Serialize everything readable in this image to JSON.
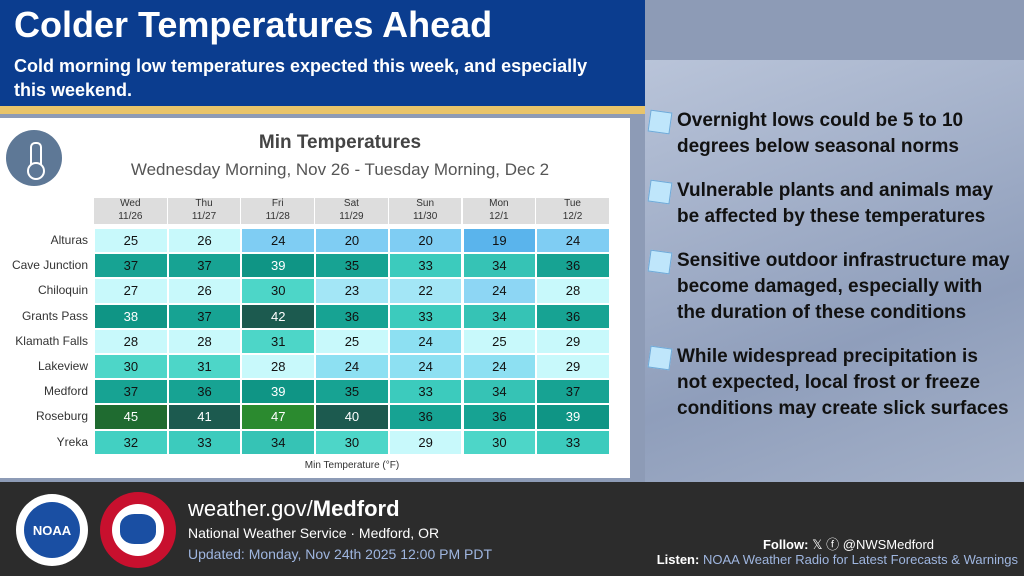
{
  "header": {
    "title": "Colder Temperatures Ahead",
    "subtitle": "Cold morning low temperatures expected this week, and especially this weekend."
  },
  "table": {
    "title": "Min Temperatures",
    "subtitle": "Wednesday Morning, Nov 26 - Tuesday Morning, Dec 2",
    "columns": [
      {
        "day": "Wed",
        "date": "11/26"
      },
      {
        "day": "Thu",
        "date": "11/27"
      },
      {
        "day": "Fri",
        "date": "11/28"
      },
      {
        "day": "Sat",
        "date": "11/29"
      },
      {
        "day": "Sun",
        "date": "11/30"
      },
      {
        "day": "Mon",
        "date": "12/1"
      },
      {
        "day": "Tue",
        "date": "12/2"
      }
    ],
    "rows": [
      {
        "label": "Alturas",
        "values": [
          25,
          26,
          24,
          20,
          20,
          19,
          24
        ],
        "colors": [
          "#c8f9fb",
          "#c8f9fb",
          "#7fcdf3",
          "#7fcdf3",
          "#7fcdf3",
          "#5ab4ec",
          "#7fcdf3"
        ]
      },
      {
        "label": "Cave Junction",
        "values": [
          37,
          37,
          39,
          35,
          33,
          34,
          36
        ],
        "colors": [
          "#17a393",
          "#17a393",
          "#0f9585",
          "#17a393",
          "#3ccbbd",
          "#36c3b5",
          "#17a393"
        ]
      },
      {
        "label": "Chiloquin",
        "values": [
          27,
          26,
          30,
          23,
          22,
          24,
          28
        ],
        "colors": [
          "#c8f9fb",
          "#c8f9fb",
          "#4dd6c8",
          "#a3e6f6",
          "#a3e6f6",
          "#8dd6f4",
          "#c8f9fb"
        ]
      },
      {
        "label": "Grants Pass",
        "values": [
          38,
          37,
          42,
          36,
          33,
          34,
          36
        ],
        "colors": [
          "#0f9585",
          "#17a393",
          "#1c5a4f",
          "#17a393",
          "#3ccbbd",
          "#36c3b5",
          "#17a393"
        ]
      },
      {
        "label": "Klamath Falls",
        "values": [
          28,
          28,
          31,
          25,
          24,
          25,
          29
        ],
        "colors": [
          "#c8f9fb",
          "#c8f9fb",
          "#4dd6c8",
          "#c8f9fb",
          "#8de0f2",
          "#c8f9fb",
          "#c8f9fb"
        ]
      },
      {
        "label": "Lakeview",
        "values": [
          30,
          31,
          28,
          24,
          24,
          24,
          29
        ],
        "colors": [
          "#4dd6c8",
          "#4dd6c8",
          "#c8f9fb",
          "#8de0f2",
          "#8de0f2",
          "#8de0f2",
          "#c8f9fb"
        ]
      },
      {
        "label": "Medford",
        "values": [
          37,
          36,
          39,
          35,
          33,
          34,
          37
        ],
        "colors": [
          "#17a393",
          "#17a393",
          "#0f9585",
          "#17a393",
          "#3ccbbd",
          "#36c3b5",
          "#17a393"
        ]
      },
      {
        "label": "Roseburg",
        "values": [
          45,
          41,
          47,
          40,
          36,
          36,
          39
        ],
        "colors": [
          "#1f6b30",
          "#1c5a4f",
          "#2b8a2f",
          "#1c5a4f",
          "#17a393",
          "#17a393",
          "#0f9585"
        ]
      },
      {
        "label": "Yreka",
        "values": [
          32,
          33,
          34,
          30,
          29,
          30,
          33
        ],
        "colors": [
          "#42d0c2",
          "#3ccbbd",
          "#36c3b5",
          "#4dd6c8",
          "#c8f9fb",
          "#4dd6c8",
          "#3ccbbd"
        ]
      }
    ],
    "footnote": "Min Temperature (°F)"
  },
  "bullets": [
    "Overnight lows could be 5 to 10 degrees below seasonal norms",
    "Vulnerable plants and animals may be affected by these temperatures",
    "Sensitive outdoor infrastructure may become damaged, especially with the duration of these conditions",
    "While widespread precipitation is not expected, local frost or freeze conditions may create slick surfaces"
  ],
  "footer": {
    "noaa": "NOAA",
    "url_prefix": "weather.gov/",
    "url_office": "Medford",
    "org": "National Weather Service · Medford, OR",
    "updated": "Updated: Monday, Nov 24th 2025 12:00 PM PDT",
    "follow_label": "Follow:",
    "handle": "@NWSMedford",
    "listen_label": "Listen:",
    "listen_text": "NOAA Weather Radio for Latest Forecasts & Warnings"
  }
}
